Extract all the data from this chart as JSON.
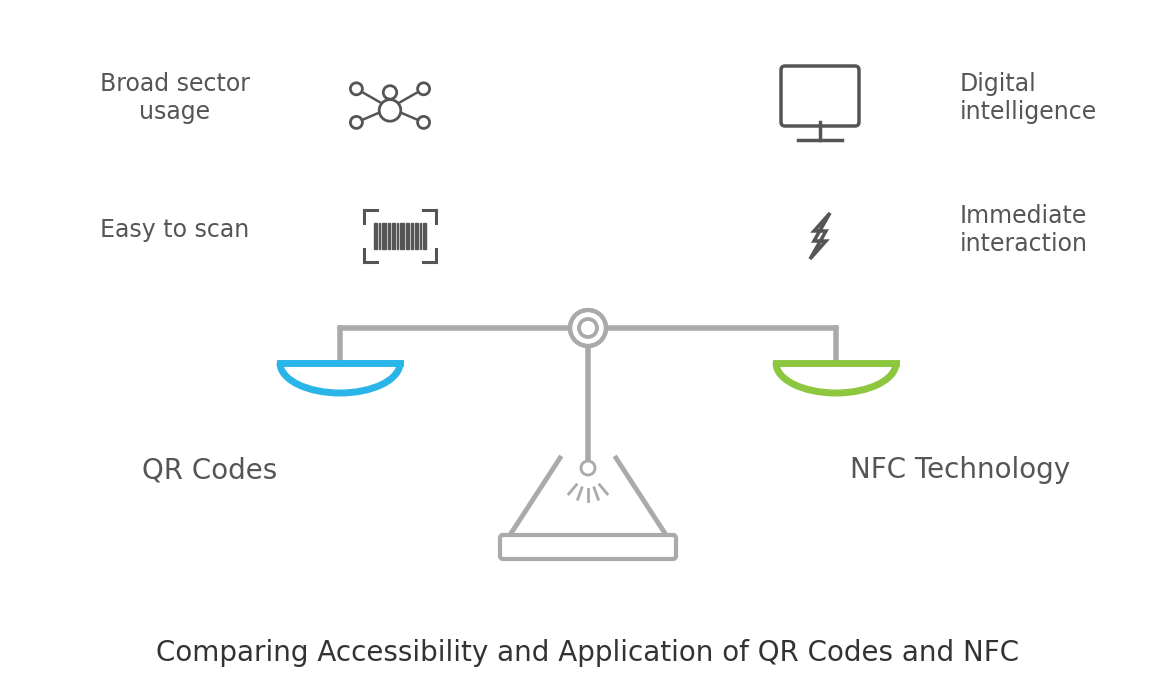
{
  "title": "Comparing Accessibility and Application of QR Codes and NFC",
  "title_fontsize": 20,
  "title_color": "#333333",
  "background_color": "#ffffff",
  "scale_color": "#aaaaaa",
  "left_pan_color": "#29b5e8",
  "right_pan_color": "#8dc63f",
  "label_left": "QR Codes",
  "label_right": "NFC Technology",
  "label_fontsize": 20,
  "label_color": "#555555",
  "feature_left_1": "Broad sector\nusage",
  "feature_left_2": "Easy to scan",
  "feature_right_1": "Digital\nintelligence",
  "feature_right_2": "Immediate\ninteraction",
  "feature_fontsize": 17,
  "feature_color": "#555555",
  "icon_color": "#555555"
}
